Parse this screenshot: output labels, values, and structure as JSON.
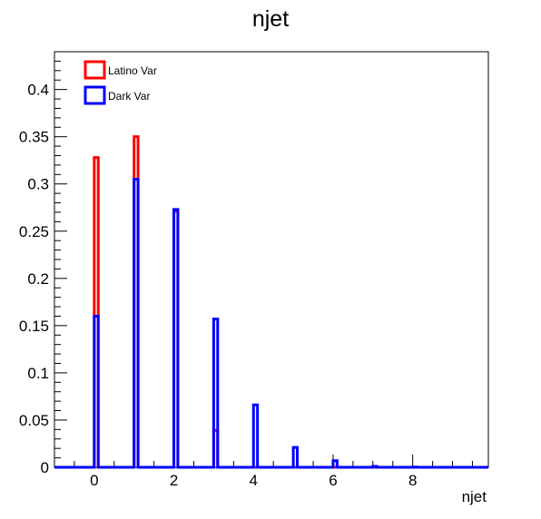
{
  "chart_data": {
    "type": "histogram",
    "title": "njet",
    "xlabel": "njet",
    "ylabel": "",
    "xlim": [
      -1,
      9.9
    ],
    "ylim": [
      0,
      0.44
    ],
    "bin_width": 0.1,
    "x_ticks": [
      0,
      2,
      4,
      6,
      8
    ],
    "x_tick_labels": [
      "0",
      "2",
      "4",
      "6",
      "8"
    ],
    "y_ticks": [
      0,
      0.05,
      0.1,
      0.15,
      0.2,
      0.25,
      0.3,
      0.35,
      0.4
    ],
    "y_tick_labels": [
      "0",
      "0.05",
      "0.1",
      "0.15",
      "0.2",
      "0.25",
      "0.3",
      "0.35",
      "0.4"
    ],
    "legend_position": "top-left",
    "series": [
      {
        "name": "Latino Var",
        "color": "#ff0000",
        "x": [
          0,
          1,
          2,
          3,
          4,
          5,
          6,
          7,
          8
        ],
        "values": [
          0.328,
          0.35,
          0.271,
          0.039,
          0.0,
          0.0,
          0.0,
          0.0,
          0.0
        ]
      },
      {
        "name": "Dark Var",
        "color": "#0000ff",
        "x": [
          0,
          1,
          2,
          3,
          4,
          5,
          6,
          7,
          8
        ],
        "values": [
          0.16,
          0.305,
          0.273,
          0.157,
          0.066,
          0.021,
          0.007,
          0.001,
          0.0003
        ]
      }
    ]
  }
}
